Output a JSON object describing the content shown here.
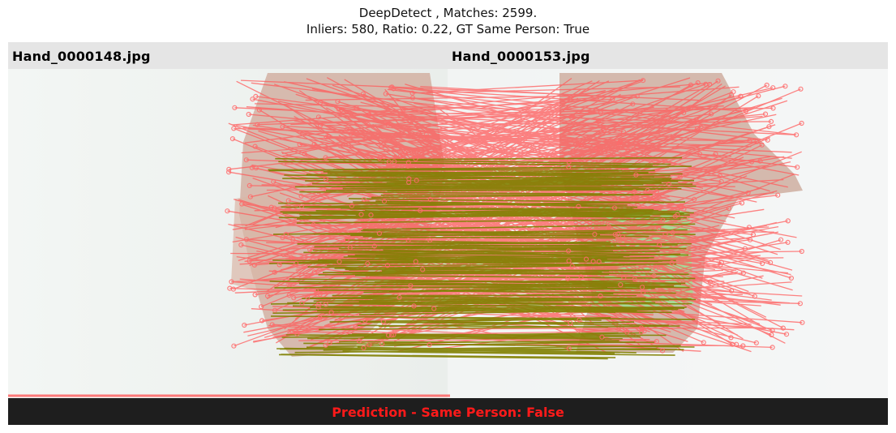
{
  "title": {
    "line1": "DeepDetect , Matches: 2599.",
    "line2": "Inliers: 580, Ratio: 0.22, GT Same Person: True"
  },
  "images": {
    "left_filename": "Hand_0000148.jpg",
    "right_filename": "Hand_0000153.jpg"
  },
  "prediction": "Prediction - Same Person: False",
  "colors": {
    "outlier_match": "#ff6b6b",
    "inlier_match": "#808000",
    "header_bar": "#e5e5e5",
    "footer_bar": "#1e1e1e",
    "prediction_text": "#ff1a1a"
  }
}
